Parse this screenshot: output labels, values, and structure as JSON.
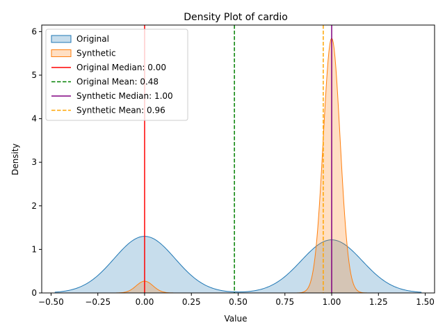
{
  "chart_data": {
    "type": "area",
    "title": "Density Plot of cardio",
    "xlabel": "Value",
    "ylabel": "Density",
    "xlim": [
      -0.55,
      1.55
    ],
    "ylim": [
      0,
      6.15
    ],
    "x_ticks": [
      -0.5,
      -0.25,
      0.0,
      0.25,
      0.5,
      0.75,
      1.0,
      1.25,
      1.5
    ],
    "x_tick_labels": [
      "−0.50",
      "−0.25",
      "0.00",
      "0.25",
      "0.50",
      "0.75",
      "1.00",
      "1.25",
      "1.50"
    ],
    "y_ticks": [
      0,
      1,
      2,
      3,
      4,
      5,
      6
    ],
    "y_tick_labels": [
      "0",
      "1",
      "2",
      "3",
      "4",
      "5",
      "6"
    ],
    "legend_position": "top-left",
    "series": [
      {
        "name": "Original",
        "kind": "density",
        "color": "#1f77b4",
        "range": [
          -0.48,
          1.48
        ],
        "components": [
          {
            "mean": 0.0,
            "sd": 0.163,
            "peak": 1.3
          },
          {
            "mean": 1.0,
            "sd": 0.163,
            "peak": 1.22
          }
        ]
      },
      {
        "name": "Synthetic",
        "kind": "density",
        "color": "#ff7f0e",
        "range": [
          -0.2,
          1.2
        ],
        "components": [
          {
            "mean": 0.0,
            "sd": 0.045,
            "peak": 0.27
          },
          {
            "mean": 1.0,
            "sd": 0.045,
            "peak": 5.85
          }
        ]
      }
    ],
    "reference_lines": [
      {
        "name": "Original Median: 0.00",
        "x": 0.0,
        "color": "#ff0000",
        "style": "solid"
      },
      {
        "name": "Original Mean: 0.48",
        "x": 0.48,
        "color": "#008000",
        "style": "dashed"
      },
      {
        "name": "Synthetic Median: 1.00",
        "x": 1.0,
        "color": "#800080",
        "style": "solid"
      },
      {
        "name": "Synthetic Mean: 0.96",
        "x": 0.955,
        "color": "#ffa500",
        "style": "dashed"
      }
    ]
  }
}
